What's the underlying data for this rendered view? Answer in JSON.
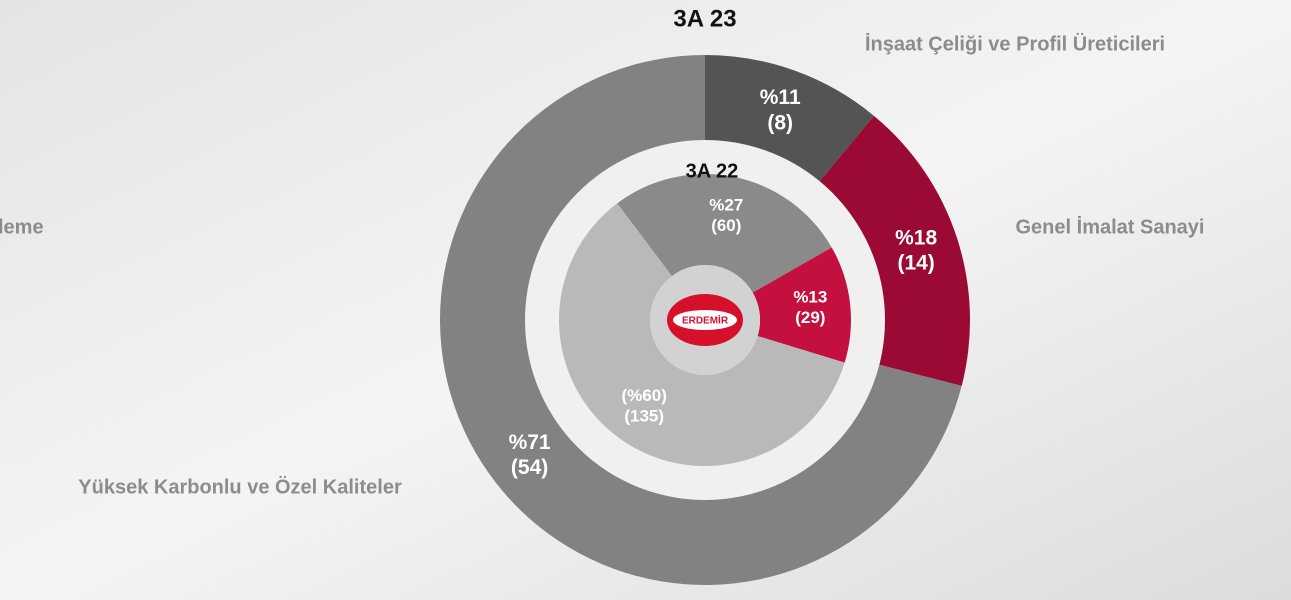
{
  "chart_data": [
    {
      "type": "pie",
      "title": "3A 23",
      "categories": [
        "İnşaat Çeliği ve Profil Üreticileri",
        "Genel İmalat Sanayi",
        "Yüksek Karbonlu ve Özel Kaliteler"
      ],
      "values": [
        11,
        18,
        71
      ],
      "value_labels": [
        "%11",
        "%18",
        "%71"
      ],
      "counts": [
        8,
        14,
        54
      ],
      "count_labels": [
        "(8)",
        "(14)",
        "(54)"
      ],
      "colors": [
        "#545454",
        "#9a0a34",
        "#828282"
      ]
    },
    {
      "type": "pie",
      "title": "3A 22",
      "values": [
        27,
        13,
        60
      ],
      "value_labels": [
        "%27",
        "%13",
        "(%60)"
      ],
      "counts": [
        60,
        29,
        135
      ],
      "count_labels": [
        "(60)",
        "(29)",
        "(135)"
      ],
      "colors": [
        "#8a8a8a",
        "#c3103f",
        "#b9b9b9"
      ]
    }
  ],
  "annotations": [
    "leme"
  ],
  "logo": "ERDEMİR"
}
